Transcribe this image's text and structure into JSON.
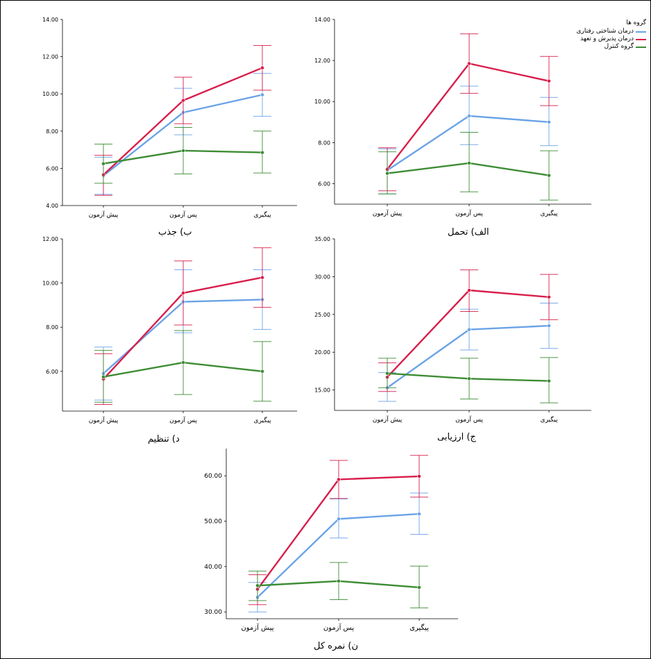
{
  "colors": {
    "cbt": "#6aa3e6",
    "act": "#d81e4a",
    "control": "#3d8c34"
  },
  "legend": {
    "title": "گروه ها",
    "items": [
      {
        "label": "درمان شناختی رفتاری",
        "color_key": "cbt"
      },
      {
        "label": "درمان پذیرش و تعهد",
        "color_key": "act"
      },
      {
        "label": "گروه کنترل",
        "color_key": "control"
      }
    ]
  },
  "chart_data": [
    {
      "id": "attraction",
      "type": "line",
      "title": "ب) جذب",
      "categories": [
        "پیش آزمون",
        "پس آزمون",
        "پیگیری"
      ],
      "ylim": [
        4,
        14
      ],
      "yticks": [
        "4.00",
        "6.00",
        "8.00",
        "10.00",
        "12.00",
        "14.00"
      ],
      "series": [
        {
          "name": "درمان شناختی رفتاری",
          "color_key": "cbt",
          "values": [
            5.6,
            9.0,
            9.95
          ],
          "err_low": [
            4.6,
            7.8,
            8.8
          ],
          "err_high": [
            6.6,
            10.3,
            11.1
          ]
        },
        {
          "name": "درمان پذیرش و تعهد",
          "color_key": "act",
          "values": [
            5.65,
            9.65,
            11.4
          ],
          "err_low": [
            4.55,
            8.4,
            10.2
          ],
          "err_high": [
            6.7,
            10.9,
            12.6
          ]
        },
        {
          "name": "گروه کنترل",
          "color_key": "control",
          "values": [
            6.25,
            6.95,
            6.85
          ],
          "err_low": [
            5.2,
            5.7,
            5.75
          ],
          "err_high": [
            7.3,
            8.2,
            8.0
          ]
        }
      ]
    },
    {
      "id": "tolerance",
      "type": "line",
      "title": "الف) تحمل",
      "categories": [
        "پیش آزمون",
        "پس آزمون",
        "پیگیری"
      ],
      "ylim": [
        5,
        14
      ],
      "yticks": [
        "6.00",
        "8.00",
        "10.00",
        "12.00",
        "14.00"
      ],
      "series": [
        {
          "name": "درمان شناختی رفتاری",
          "color_key": "cbt",
          "values": [
            6.65,
            9.3,
            9.0
          ],
          "err_low": [
            5.5,
            7.9,
            7.85
          ],
          "err_high": [
            7.7,
            10.75,
            10.2
          ]
        },
        {
          "name": "درمان پذیرش و تعهد",
          "color_key": "act",
          "values": [
            6.7,
            11.85,
            11.0
          ],
          "err_low": [
            5.65,
            10.4,
            9.8
          ],
          "err_high": [
            7.75,
            13.3,
            12.2
          ]
        },
        {
          "name": "گروه کنترل",
          "color_key": "control",
          "values": [
            6.5,
            7.0,
            6.4
          ],
          "err_low": [
            5.5,
            5.6,
            5.2
          ],
          "err_high": [
            7.55,
            8.5,
            7.6
          ]
        }
      ]
    },
    {
      "id": "regulation",
      "type": "line",
      "title": "د) تنظیم",
      "categories": [
        "پیش آزمون",
        "پس آزمون",
        "پیگیری"
      ],
      "ylim": [
        4.2,
        12
      ],
      "yticks": [
        "6.00",
        "8.00",
        "10.00",
        "12.00"
      ],
      "series": [
        {
          "name": "درمان شناختی رفتاری",
          "color_key": "cbt",
          "values": [
            5.9,
            9.15,
            9.25
          ],
          "err_low": [
            4.7,
            7.75,
            7.9
          ],
          "err_high": [
            7.1,
            10.6,
            10.6
          ]
        },
        {
          "name": "درمان پذیرش و تعهد",
          "color_key": "act",
          "values": [
            5.65,
            9.55,
            10.25
          ],
          "err_low": [
            4.5,
            8.1,
            8.9
          ],
          "err_high": [
            6.8,
            11.0,
            11.6
          ]
        },
        {
          "name": "گروه کنترل",
          "color_key": "control",
          "values": [
            5.75,
            6.4,
            6.0
          ],
          "err_low": [
            4.6,
            4.95,
            4.65
          ],
          "err_high": [
            6.95,
            7.85,
            7.35
          ]
        }
      ]
    },
    {
      "id": "appraisal",
      "type": "line",
      "title": "ج) ارزیابی",
      "categories": [
        "پیش آزمون",
        "پس آزمون",
        "پیگیری"
      ],
      "ylim": [
        12.3,
        35
      ],
      "yticks": [
        "15.00",
        "20.00",
        "25.00",
        "30.00",
        "35.00"
      ],
      "series": [
        {
          "name": "درمان شناختی رفتاری",
          "color_key": "cbt",
          "values": [
            15.3,
            23.0,
            23.5
          ],
          "err_low": [
            13.5,
            20.3,
            20.5
          ],
          "err_high": [
            17.3,
            25.7,
            26.5
          ]
        },
        {
          "name": "درمان پذیرش و تعهد",
          "color_key": "act",
          "values": [
            16.7,
            28.2,
            27.3
          ],
          "err_low": [
            14.8,
            25.4,
            24.3
          ],
          "err_high": [
            18.6,
            30.9,
            30.3
          ]
        },
        {
          "name": "گروه کنترل",
          "color_key": "control",
          "values": [
            17.2,
            16.5,
            16.2
          ],
          "err_low": [
            15.3,
            13.8,
            13.3
          ],
          "err_high": [
            19.2,
            19.2,
            19.3
          ]
        }
      ]
    },
    {
      "id": "total",
      "type": "line",
      "title": "ن) نمره کل",
      "categories": [
        "پیش آزمون",
        "پس آزمون",
        "پیگیری"
      ],
      "ylim": [
        28.5,
        66
      ],
      "yticks": [
        "30.00",
        "40.00",
        "50.00",
        "60.00"
      ],
      "series": [
        {
          "name": "درمان شناختی رفتاری",
          "color_key": "cbt",
          "values": [
            33.2,
            50.5,
            51.6
          ],
          "err_low": [
            30.0,
            46.3,
            47.1
          ],
          "err_high": [
            36.5,
            54.9,
            56.2
          ]
        },
        {
          "name": "درمان پذیرش و تعهد",
          "color_key": "act",
          "values": [
            35.0,
            59.2,
            59.9
          ],
          "err_low": [
            31.6,
            55.0,
            55.3
          ],
          "err_high": [
            38.2,
            63.4,
            64.5
          ]
        },
        {
          "name": "گروه کنترل",
          "color_key": "control",
          "values": [
            35.8,
            36.8,
            35.4
          ],
          "err_low": [
            32.5,
            32.7,
            30.9
          ],
          "err_high": [
            39.0,
            40.9,
            40.1
          ]
        }
      ]
    }
  ]
}
